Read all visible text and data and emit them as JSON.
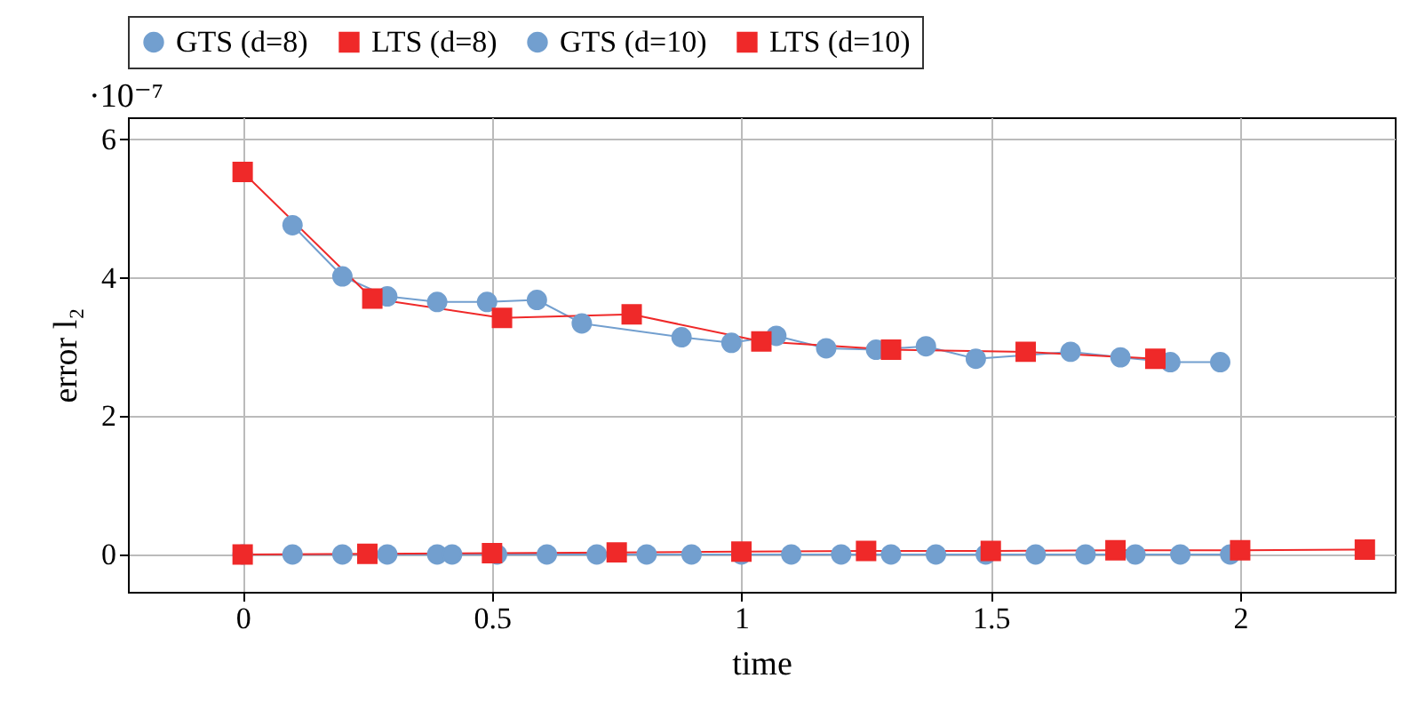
{
  "chart_data": {
    "type": "line",
    "xlabel": "time",
    "ylabel": "error l₂",
    "annotations": [
      "·10⁻⁷"
    ],
    "xlim": [
      -0.23,
      2.31
    ],
    "xticks": [
      0,
      0.5,
      1,
      1.5,
      2
    ],
    "ylim": [
      -0.54,
      6.32
    ],
    "yticks": [
      0,
      2,
      4,
      6
    ],
    "grid": true,
    "legend": "top",
    "series": [
      {
        "name": "GTS (d=8)",
        "color": "#729fcf",
        "marker": "circle",
        "x": [
          0.1,
          0.2,
          0.29,
          0.39,
          0.49,
          0.59,
          0.68,
          0.88,
          0.98,
          1.07,
          1.17,
          1.27,
          1.37,
          1.47,
          1.66,
          1.76,
          1.86,
          1.96
        ],
        "values": [
          4.76,
          4.02,
          3.73,
          3.65,
          3.65,
          3.68,
          3.34,
          3.14,
          3.06,
          3.16,
          2.98,
          2.96,
          3.01,
          2.83,
          2.93,
          2.85,
          2.78,
          2.78
        ]
      },
      {
        "name": "LTS (d=8)",
        "color": "#ef2929",
        "marker": "square",
        "x": [
          0,
          0.26,
          0.52,
          0.78,
          1.04,
          1.3,
          1.57,
          1.83
        ],
        "values": [
          5.53,
          3.7,
          3.42,
          3.47,
          3.08,
          2.96,
          2.93,
          2.83
        ]
      },
      {
        "name": "GTS (d=10)",
        "color": "#729fcf",
        "marker": "circle",
        "x": [
          0,
          0.1,
          0.2,
          0.29,
          0.39,
          0.42,
          0.51,
          0.61,
          0.71,
          0.81,
          0.9,
          1.0,
          1.1,
          1.2,
          1.3,
          1.39,
          1.49,
          1.59,
          1.69,
          1.79,
          1.88,
          1.98
        ],
        "values": [
          0,
          0,
          0,
          0,
          0,
          0,
          0,
          0,
          0,
          0,
          0,
          0,
          0,
          0,
          0,
          0,
          0,
          0,
          0,
          0,
          0,
          0
        ]
      },
      {
        "name": "LTS (d=10)",
        "color": "#ef2929",
        "marker": "square",
        "x": [
          0,
          0.25,
          0.5,
          0.75,
          1.0,
          1.25,
          1.5,
          1.75,
          2.0,
          2.25
        ],
        "values": [
          0,
          0.01,
          0.02,
          0.03,
          0.04,
          0.05,
          0.05,
          0.06,
          0.06,
          0.07
        ]
      }
    ]
  }
}
